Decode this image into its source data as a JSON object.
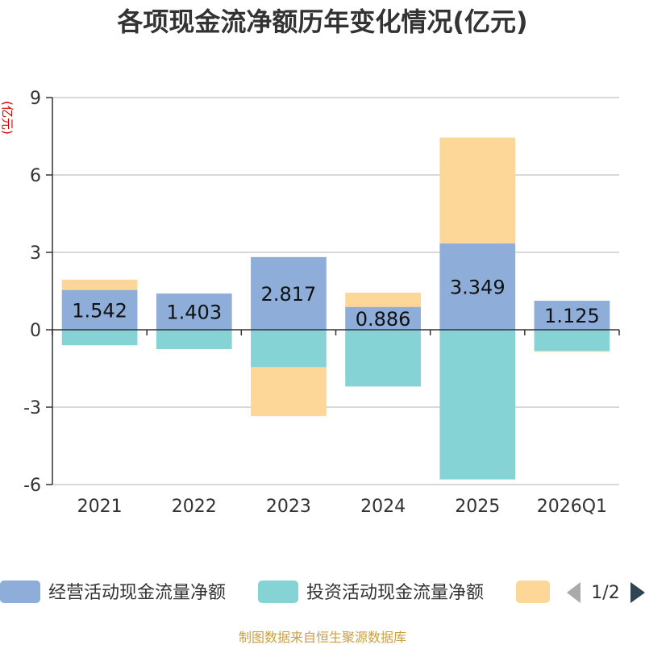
{
  "chart_data": {
    "type": "bar",
    "title": "各项现金流净额历年变化情况(亿元)",
    "ylabel": "(亿元)",
    "ylim": [
      -6,
      9
    ],
    "yticks": [
      9,
      6,
      3,
      0,
      -3,
      -6
    ],
    "categories": [
      "2021",
      "2022",
      "2023",
      "2024",
      "2025",
      "2026Q1"
    ],
    "series": [
      {
        "name": "经营活动现金流量净额",
        "color": "#8eadd9",
        "values": [
          1.542,
          1.403,
          2.817,
          0.886,
          3.349,
          1.125
        ]
      },
      {
        "name": "投资活动现金流量净额",
        "color": "#86d3d6",
        "values": [
          -0.6,
          -0.75,
          -1.45,
          -2.2,
          -5.8,
          -0.82
        ]
      },
      {
        "name": "",
        "color": "#fdd797",
        "values": [
          0.4,
          0.0,
          -1.9,
          0.55,
          4.1,
          -0.04
        ]
      }
    ],
    "data_labels": [
      "1.542",
      "1.403",
      "2.817",
      "0.886",
      "3.349",
      "1.125"
    ],
    "legend": {
      "position": "bottom",
      "page": "1/2"
    },
    "source": "制图数据来自恒生聚源数据库"
  }
}
